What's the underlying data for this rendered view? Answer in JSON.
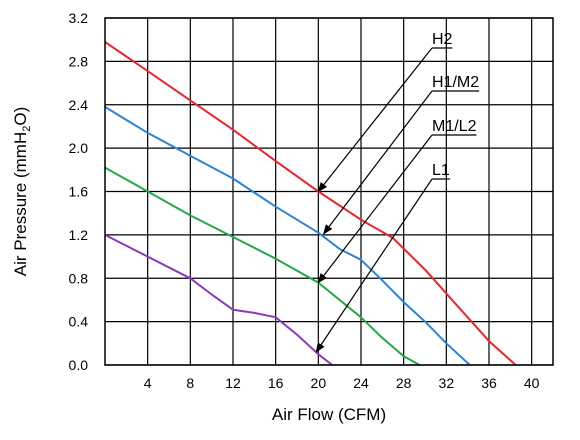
{
  "chart_data": {
    "type": "line",
    "title": "",
    "xlabel": "Air Flow (CFM)",
    "ylabel_parts": {
      "main": "Air Pressure (mmH",
      "sub": "2",
      "end": "O)"
    },
    "xlim": [
      0,
      42
    ],
    "ylim": [
      0.0,
      3.2
    ],
    "xticks": [
      4,
      8,
      12,
      16,
      20,
      24,
      28,
      32,
      36,
      40
    ],
    "xtick_labels": [
      "4",
      "8",
      "12",
      "16",
      "20",
      "24",
      "28",
      "32",
      "36",
      "40"
    ],
    "yticks": [
      0.0,
      0.4,
      0.8,
      1.2,
      1.6,
      2.0,
      2.4,
      2.8,
      3.2
    ],
    "ytick_labels": [
      "0.0",
      "0.4",
      "0.8",
      "1.2",
      "1.6",
      "2.0",
      "2.4",
      "2.8",
      "3.2"
    ],
    "grid": true,
    "legend": "annotations with arrows, upper right",
    "series": [
      {
        "name": "H2",
        "color": "#e8262b",
        "x": [
          0,
          4,
          8,
          12,
          16,
          20,
          24,
          27,
          30,
          33,
          36,
          38.5
        ],
        "y": [
          2.98,
          2.71,
          2.44,
          2.17,
          1.88,
          1.6,
          1.34,
          1.17,
          0.88,
          0.55,
          0.22,
          0.0
        ]
      },
      {
        "name": "H1/M2",
        "color": "#2a84d2",
        "x": [
          0,
          4,
          8,
          12,
          16,
          20,
          22,
          24,
          26,
          28,
          30,
          32,
          34.2
        ],
        "y": [
          2.38,
          2.14,
          1.93,
          1.72,
          1.46,
          1.22,
          1.07,
          0.97,
          0.78,
          0.58,
          0.4,
          0.2,
          0.0
        ]
      },
      {
        "name": "M1/L2",
        "color": "#22a84a",
        "x": [
          0,
          4,
          8,
          12,
          16,
          20,
          24,
          26,
          28,
          29.5
        ],
        "y": [
          1.82,
          1.6,
          1.38,
          1.18,
          0.98,
          0.76,
          0.44,
          0.25,
          0.08,
          0.0
        ]
      },
      {
        "name": "L1",
        "color": "#8a3ab9",
        "x": [
          0,
          4,
          8,
          10,
          12,
          14,
          16,
          18,
          20,
          21.3
        ],
        "y": [
          1.2,
          1.0,
          0.8,
          0.65,
          0.51,
          0.48,
          0.44,
          0.28,
          0.1,
          0.0
        ]
      }
    ],
    "annotations": [
      {
        "label": "H2",
        "series": "H2",
        "x": 20,
        "y": 1.6
      },
      {
        "label": "H1/M2",
        "series": "H1/M2",
        "x": 20.5,
        "y": 1.21
      },
      {
        "label": "M1/L2",
        "series": "M1/L2",
        "x": 20,
        "y": 0.76
      },
      {
        "label": "L1",
        "series": "L1",
        "x": 19.8,
        "y": 0.12
      }
    ]
  }
}
